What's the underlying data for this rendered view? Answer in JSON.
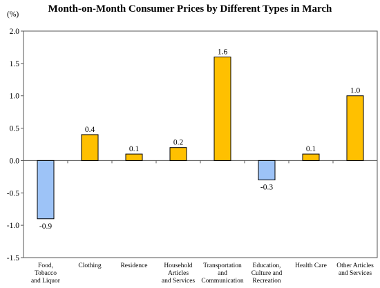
{
  "chart_data": {
    "type": "bar",
    "title": "Month-on-Month Consumer Prices by Different Types in March",
    "unit": "(%)",
    "categories": [
      "Food, Tobacco and Liquor",
      "Clothing",
      "Residence",
      "Household Articles and Services",
      "Transportation and Communication",
      "Education, Culture and Recreation",
      "Health Care",
      "Other Articles and Services"
    ],
    "category_lines": [
      [
        "Food,",
        "Tobacco",
        "and Liquor"
      ],
      [
        "Clothing"
      ],
      [
        "Residence"
      ],
      [
        "Household",
        "Articles",
        "and Services"
      ],
      [
        "Transportation",
        "and",
        "Communication"
      ],
      [
        "Education,",
        "Culture and",
        "Recreation"
      ],
      [
        "Health Care"
      ],
      [
        "Other Articles",
        "and Services"
      ]
    ],
    "values": [
      -0.9,
      0.4,
      0.1,
      0.2,
      1.6,
      -0.3,
      0.1,
      1.0
    ],
    "data_labels": [
      "-0.9",
      "0.4",
      "0.1",
      "0.2",
      "1.6",
      "-0.3",
      "0.1",
      "1.0"
    ],
    "yticks": [
      2.0,
      1.5,
      1.0,
      0.5,
      0.0,
      -0.5,
      -1.0,
      -1.5
    ],
    "ytick_labels": [
      "2.0",
      "1.5",
      "1.0",
      "0.5",
      "0.0",
      "-0.5",
      "-1.0",
      "-1.5"
    ],
    "ylim": [
      -1.5,
      2.0
    ],
    "grid": false,
    "colors": {
      "positive": "#FFC000",
      "negative": "#9DC3F7",
      "bar_stroke": "#000000",
      "axis": "#555555"
    }
  }
}
